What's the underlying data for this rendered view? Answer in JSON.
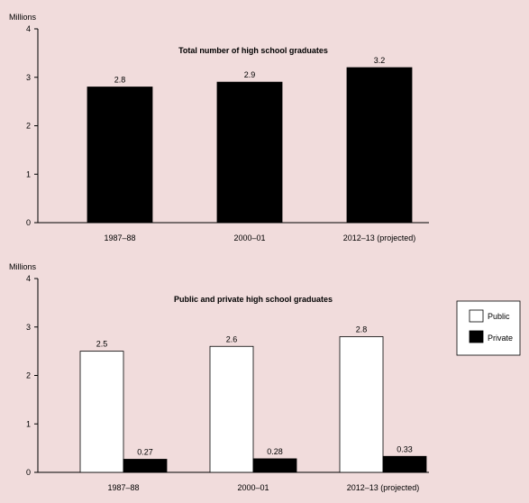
{
  "colors": {
    "background": "#f1dcdc",
    "bar_dark": "#000000",
    "bar_light": "#ffffff",
    "axis": "#000000"
  },
  "chart_data": [
    {
      "type": "bar",
      "title": "Total number of high school graduates",
      "ylabel": "Millions",
      "ylim": [
        0,
        4
      ],
      "yticks": [
        0,
        1,
        2,
        3,
        4
      ],
      "categories": [
        "1987–88",
        "2000–01",
        "2012–13 (projected)"
      ],
      "series": [
        {
          "values": [
            2.8,
            2.9,
            3.2
          ],
          "color": "#000000"
        }
      ],
      "data_labels": [
        "2.8",
        "2.9",
        "3.2"
      ],
      "grid": false,
      "legend": null
    },
    {
      "type": "bar",
      "title": "Public and private high school graduates",
      "ylabel": "Millions",
      "ylim": [
        0,
        4
      ],
      "yticks": [
        0,
        1,
        2,
        3,
        4
      ],
      "categories": [
        "1987–88",
        "2000–01",
        "2012–13 (projected)"
      ],
      "series": [
        {
          "name": "Public",
          "values": [
            2.5,
            2.6,
            2.8
          ],
          "color": "#ffffff",
          "data_labels": [
            "2.5",
            "2.6",
            "2.8"
          ]
        },
        {
          "name": "Private",
          "values": [
            0.27,
            0.28,
            0.33
          ],
          "color": "#000000",
          "data_labels": [
            "0.27",
            "0.28",
            "0.33"
          ]
        }
      ],
      "grid": false,
      "legend": "right"
    }
  ]
}
